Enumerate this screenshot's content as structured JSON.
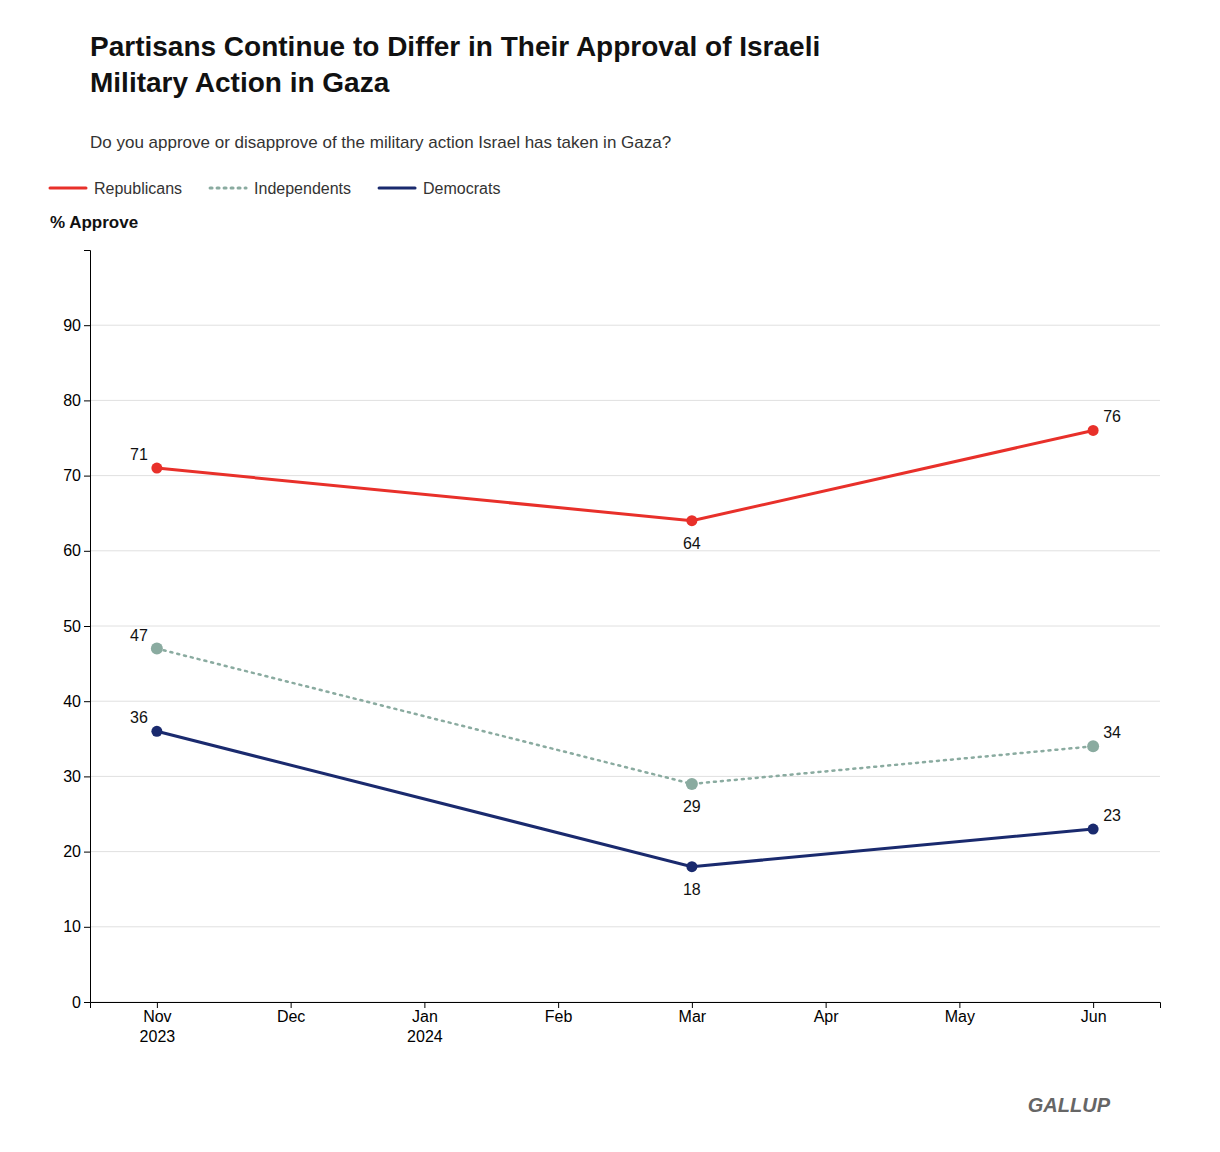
{
  "chart_data": {
    "type": "line",
    "title": "Partisans Continue to Differ in Their Approval of Israeli\nMilitary Action in Gaza",
    "subtitle": "Do you approve or disapprove of the military action Israel has taken in Gaza?",
    "ylabel": "% Approve",
    "annotations": [
      "GALLUP"
    ],
    "categories": [
      "Nov\n2023",
      "Dec",
      "Jan\n2024",
      "Feb",
      "Mar",
      "Apr",
      "May",
      "Jun"
    ],
    "series": [
      {
        "name": "Republicans",
        "color": "#e8302a",
        "line_style": "solid",
        "marker": "circle",
        "values": [
          71,
          null,
          null,
          null,
          64,
          null,
          null,
          76
        ]
      },
      {
        "name": "Independents",
        "color": "#8aaba0",
        "line_style": "dotted",
        "marker": "circle",
        "values": [
          47,
          null,
          null,
          null,
          29,
          null,
          null,
          34
        ]
      },
      {
        "name": "Democrats",
        "color": "#1a2a6e",
        "line_style": "solid",
        "marker": "circle",
        "values": [
          36,
          null,
          null,
          null,
          18,
          null,
          null,
          23
        ]
      }
    ],
    "ylim": [
      0,
      100
    ],
    "yticks": [
      0,
      10,
      20,
      30,
      40,
      50,
      60,
      70,
      80,
      90
    ],
    "grid": true,
    "legend": "top-left",
    "data_labels": true
  }
}
